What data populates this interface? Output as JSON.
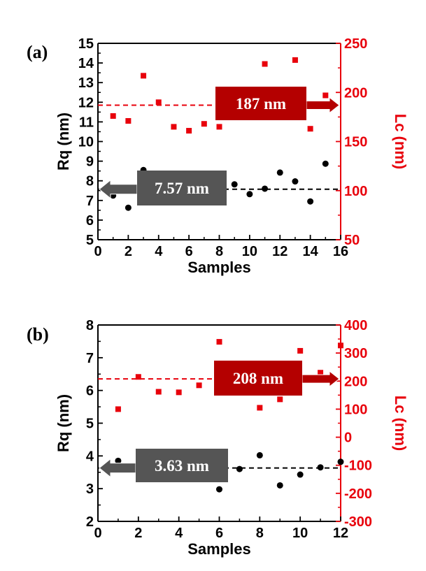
{
  "chart_data": [
    {
      "panel_label": "(a)",
      "type": "scatter",
      "xlabel": "Samples",
      "ylabel_left": "Rq (nm)",
      "ylabel_right": "Lc (nm)",
      "xlim": [
        0,
        16
      ],
      "ylim_left": [
        5,
        15
      ],
      "ylim_right": [
        50,
        250
      ],
      "x_ticks": [
        0,
        2,
        4,
        6,
        8,
        10,
        12,
        14,
        16
      ],
      "y_left_ticks": [
        5,
        6,
        7,
        8,
        9,
        10,
        11,
        12,
        13,
        14,
        15
      ],
      "y_right_ticks": [
        50,
        100,
        150,
        200,
        250
      ],
      "colors": {
        "rq": "#000000",
        "lc": "#e8000b",
        "lc_box": "#b40000",
        "rq_box": "#555555"
      },
      "series": [
        {
          "name": "Rq",
          "axis": "left",
          "marker": "circle",
          "x": [
            1,
            2,
            3,
            8,
            9,
            10,
            11,
            12,
            13,
            14,
            15
          ],
          "y": [
            7.25,
            6.63,
            8.55,
            7.7,
            7.82,
            7.32,
            7.6,
            8.42,
            7.97,
            6.95,
            8.87
          ]
        },
        {
          "name": "Lc",
          "axis": "right",
          "marker": "square",
          "x": [
            1,
            2,
            3,
            4,
            5,
            6,
            7,
            8,
            11,
            13,
            14,
            15
          ],
          "y": [
            176,
            171,
            217,
            190,
            165,
            161,
            168,
            165,
            229,
            233,
            163,
            197
          ]
        }
      ],
      "mean_lines": [
        {
          "axis": "right",
          "value": 187,
          "color": "#e8000b",
          "label": "187 nm",
          "arrow": "right"
        },
        {
          "axis": "left",
          "value": 7.57,
          "color": "#000000",
          "label": "7.57 nm",
          "arrow": "left"
        }
      ]
    },
    {
      "panel_label": "(b)",
      "type": "scatter",
      "xlabel": "Samples",
      "ylabel_left": "Rq (nm)",
      "ylabel_right": "Lc (nm)",
      "xlim": [
        0,
        12
      ],
      "ylim_left": [
        2,
        8
      ],
      "ylim_right": [
        -300,
        400
      ],
      "x_ticks": [
        0,
        2,
        4,
        6,
        8,
        10,
        12
      ],
      "y_left_ticks": [
        2,
        3,
        4,
        5,
        6,
        7,
        8
      ],
      "y_right_ticks": [
        -300,
        -200,
        -100,
        0,
        100,
        200,
        300,
        400
      ],
      "colors": {
        "rq": "#000000",
        "lc": "#e8000b",
        "lc_box": "#b40000",
        "rq_box": "#555555"
      },
      "series": [
        {
          "name": "Rq",
          "axis": "left",
          "marker": "circle",
          "x": [
            1,
            6,
            7,
            8,
            9,
            10,
            11,
            12
          ],
          "y": [
            3.85,
            2.98,
            3.6,
            4.02,
            3.1,
            3.43,
            3.65,
            3.82
          ]
        },
        {
          "name": "Lc",
          "axis": "right",
          "marker": "square",
          "x": [
            1,
            2,
            3,
            4,
            5,
            6,
            8,
            9,
            10,
            11,
            12
          ],
          "y": [
            100,
            215,
            162,
            160,
            185,
            340,
            105,
            135,
            308,
            230,
            327
          ]
        }
      ],
      "mean_lines": [
        {
          "axis": "right",
          "value": 208,
          "color": "#e8000b",
          "label": "208 nm",
          "arrow": "right"
        },
        {
          "axis": "left",
          "value": 3.63,
          "color": "#000000",
          "label": "3.63 nm",
          "arrow": "left"
        }
      ]
    }
  ]
}
